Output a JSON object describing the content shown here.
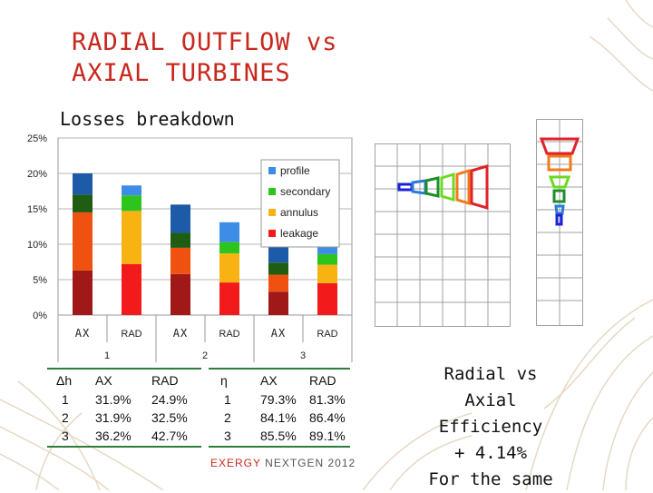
{
  "slide": {
    "title_line1": "RADIAL OUTFLOW vs",
    "title_line2": "AXIAL TURBINES",
    "subtitle": "Losses breakdown",
    "footer_brand": "EXERGY",
    "footer_rest": "NEXTGEN 2012",
    "conclusion": [
      "Radial vs",
      "Axial",
      "Efficiency",
      "+ 4.14%",
      "For the same"
    ]
  },
  "chart_data": {
    "type": "bar",
    "stacked": true,
    "title": "",
    "xlabel": "",
    "ylabel": "",
    "ylim": [
      0,
      0.25
    ],
    "y_ticks": [
      "0%",
      "5%",
      "10%",
      "15%",
      "20%",
      "25%"
    ],
    "categories": [
      "AX",
      "RAD",
      "AX",
      "RAD",
      "AX",
      "RAD"
    ],
    "groups": [
      "1",
      "2",
      "3"
    ],
    "legend_position": "top-right",
    "series": [
      {
        "name": "leakage",
        "values": [
          0.063,
          0.072,
          0.058,
          0.046,
          0.033,
          0.045
        ]
      },
      {
        "name": "annulus",
        "values": [
          0.082,
          0.075,
          0.037,
          0.041,
          0.024,
          0.026
        ]
      },
      {
        "name": "secondary",
        "values": [
          0.025,
          0.022,
          0.021,
          0.016,
          0.017,
          0.015
        ]
      },
      {
        "name": "profile",
        "values": [
          0.03,
          0.014,
          0.04,
          0.028,
          0.023,
          0.014
        ]
      }
    ],
    "ax_colors": {
      "leakage": "#a01818",
      "annulus": "#ef5210",
      "secondary": "#1f5e12",
      "profile": "#1d5ba8"
    },
    "rad_colors": {
      "leakage": "#f21a1a",
      "annulus": "#f8b312",
      "secondary": "#2ec41e",
      "profile": "#3d8de6"
    }
  },
  "table_dh": {
    "header": [
      "Δh",
      "AX",
      "RAD"
    ],
    "rows": [
      [
        "1",
        "31.9%",
        "24.9%"
      ],
      [
        "2",
        "31.9%",
        "32.5%"
      ],
      [
        "3",
        "36.2%",
        "42.7%"
      ]
    ]
  },
  "table_eta": {
    "header": [
      "η",
      "AX",
      "RAD"
    ],
    "rows": [
      [
        "1",
        "79.3%",
        "81.3%"
      ],
      [
        "2",
        "84.1%",
        "86.4%"
      ],
      [
        "3",
        "85.5%",
        "89.1%"
      ]
    ]
  }
}
